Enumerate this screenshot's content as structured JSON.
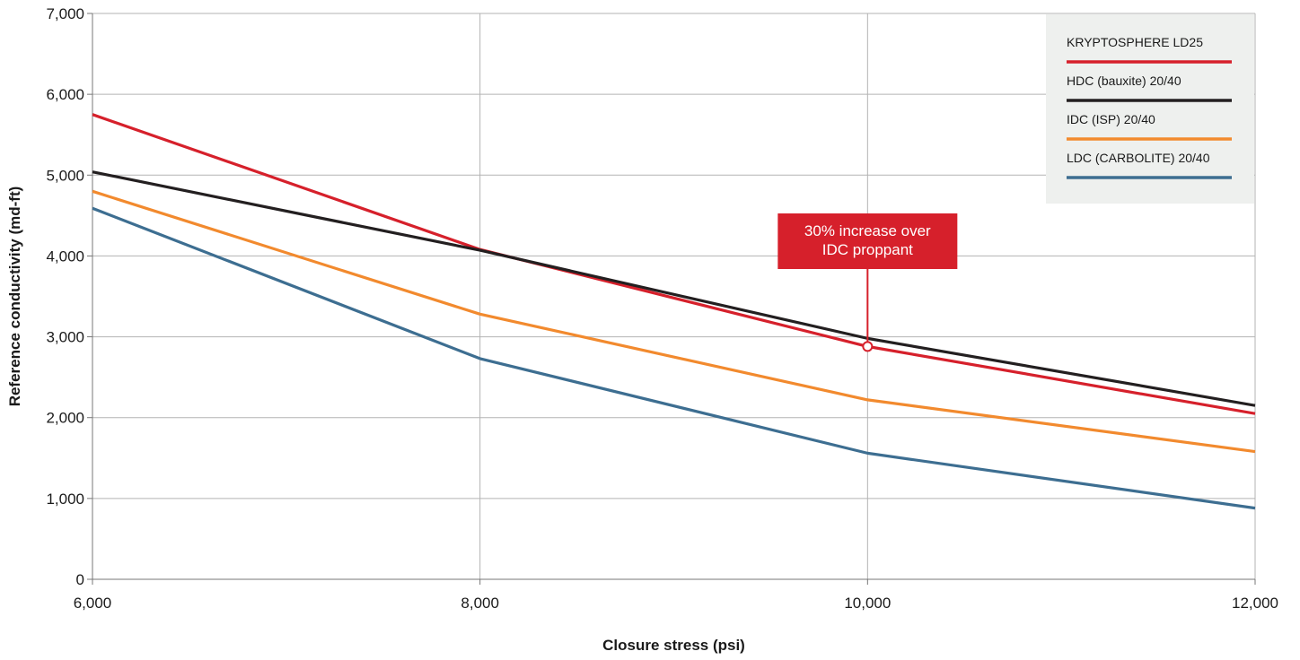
{
  "chart_data": {
    "type": "line",
    "xlabel": "Closure stress (psi)",
    "ylabel": "Reference conductivity (md-ft)",
    "x": [
      6000,
      8000,
      10000,
      12000
    ],
    "x_ticks": [
      "6,000",
      "8,000",
      "10,000",
      "12,000"
    ],
    "y_ticks": [
      "0",
      "1,000",
      "2,000",
      "3,000",
      "4,000",
      "5,000",
      "6,000",
      "7,000"
    ],
    "xlim": [
      6000,
      12000
    ],
    "ylim": [
      0,
      7000
    ],
    "grid": true,
    "legend_position": "top-right",
    "series": [
      {
        "name": "KRYPTOSPHERE LD25",
        "color": "#d6202b",
        "values": [
          5750,
          4080,
          2880,
          2050
        ]
      },
      {
        "name": "HDC (bauxite) 20/40",
        "color": "#231f20",
        "values": [
          5040,
          4070,
          2980,
          2150
        ]
      },
      {
        "name": "IDC (ISP) 20/40",
        "color": "#f28a2e",
        "values": [
          4800,
          3280,
          2220,
          1580
        ]
      },
      {
        "name": "LDC (CARBOLITE) 20/40",
        "color": "#3d6e91",
        "values": [
          4590,
          2730,
          1560,
          880
        ]
      }
    ],
    "annotation": {
      "lines": [
        "30% increase over",
        "IDC proppant"
      ],
      "x": 10000,
      "y": 2880,
      "color": "#d6202b"
    }
  }
}
